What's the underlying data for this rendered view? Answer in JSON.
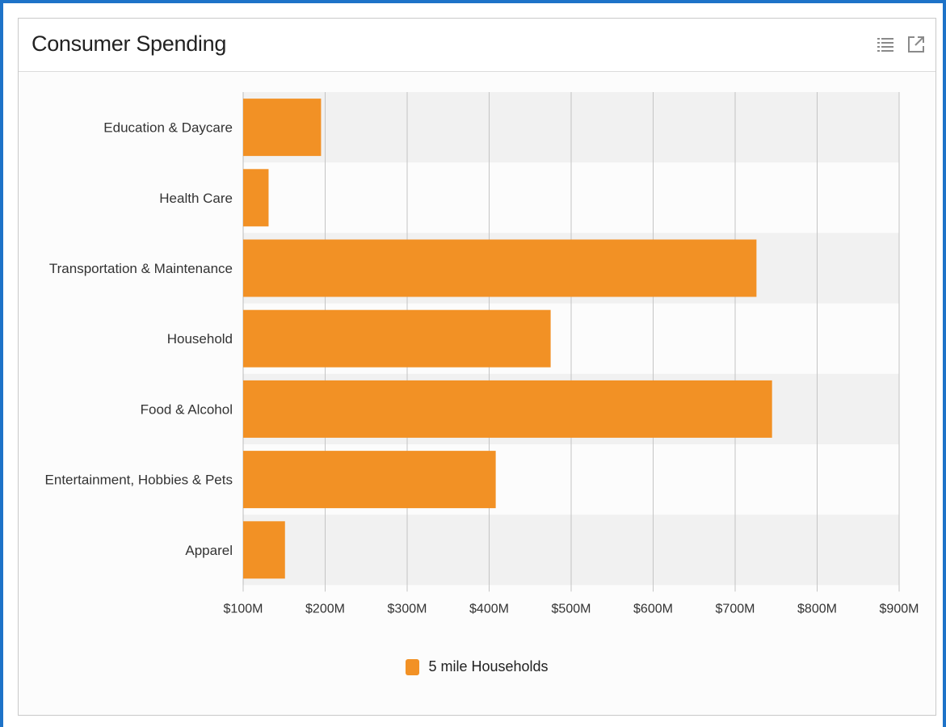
{
  "card": {
    "title": "Consumer Spending",
    "list_icon": "list-icon",
    "expand_icon": "external-open-icon"
  },
  "colors": {
    "bar": "#f29125",
    "band": "#f1f1f1",
    "grid": "#c4c4c4",
    "accent_border": "#1e73c8"
  },
  "chart_data": {
    "type": "bar",
    "orientation": "horizontal",
    "title": "",
    "xlabel": "",
    "ylabel": "",
    "categories": [
      "Education & Daycare",
      "Health Care",
      "Transportation & Maintenance",
      "Household",
      "Food & Alcohol",
      "Entertainment, Hobbies & Pets",
      "Apparel"
    ],
    "series": [
      {
        "name": "5 mile Households",
        "values": [
          195,
          131,
          726,
          475,
          745,
          408,
          151
        ]
      }
    ],
    "xlim": [
      100,
      900
    ],
    "xticks": [
      100,
      200,
      300,
      400,
      500,
      600,
      700,
      800,
      900
    ],
    "xtick_labels": [
      "$100M",
      "$200M",
      "$300M",
      "$400M",
      "$500M",
      "$600M",
      "$700M",
      "$800M",
      "$900M"
    ],
    "grid": true,
    "alternating_bands": true,
    "legend_position": "bottom"
  }
}
